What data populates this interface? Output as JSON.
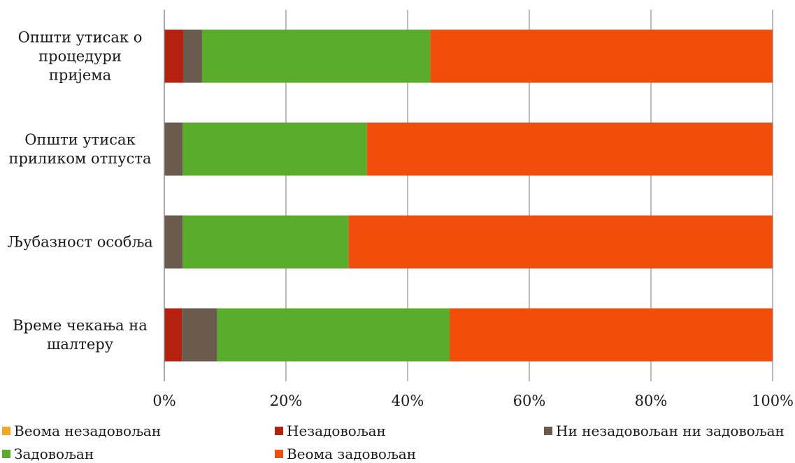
{
  "chart_data": {
    "type": "bar",
    "orientation": "horizontal",
    "stacked": "percent",
    "categories": [
      "Општи утисак о процедури пријема",
      "Општи утисак приликом отпуста",
      "Љубазност особља",
      "Време чекања на шалтеру"
    ],
    "category_lines": [
      [
        "Општи утисак о",
        "процедури",
        "пријема"
      ],
      [
        "Општи утисак",
        "приликом отпуста"
      ],
      [
        "Љубазност особља"
      ],
      [
        "Време чекања на",
        "шалтеру"
      ]
    ],
    "series": [
      {
        "name": "Веома незадовољан",
        "color": "#f5a623",
        "values": [
          0,
          0,
          0,
          0
        ]
      },
      {
        "name": "Незадовољан",
        "color": "#b5210f",
        "values": [
          3.1,
          0,
          0,
          2.9
        ]
      },
      {
        "name": "Ни незадовољан ни задовољан",
        "color": "#6b5a4e",
        "values": [
          3.1,
          3.0,
          3.0,
          5.8
        ]
      },
      {
        "name": "Задовољан",
        "color": "#5aad2a",
        "values": [
          37.5,
          30.3,
          27.3,
          38.2
        ]
      },
      {
        "name": "Веома задовољан",
        "color": "#f04e0a",
        "values": [
          56.3,
          66.7,
          69.7,
          53.1
        ]
      }
    ],
    "x_ticks": [
      "0%",
      "20%",
      "40%",
      "60%",
      "80%",
      "100%"
    ],
    "xlim": [
      0,
      100
    ],
    "grid": true,
    "legend_position": "bottom",
    "title": "",
    "xlabel": "",
    "ylabel": ""
  }
}
